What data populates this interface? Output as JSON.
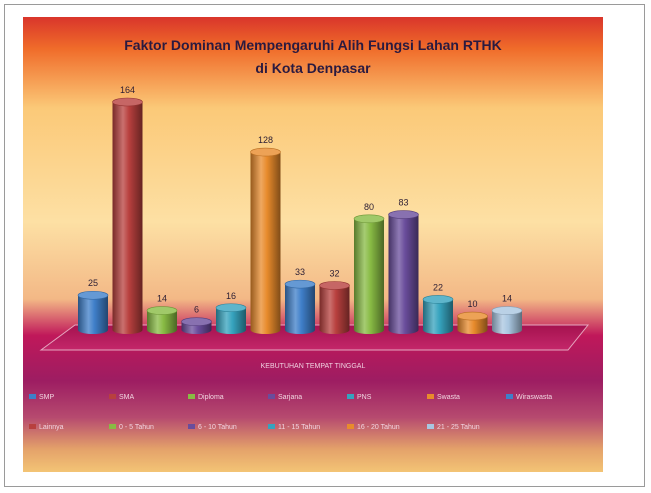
{
  "chart_data": {
    "type": "bar",
    "title_line1": "Faktor Dominan Mempengaruhi Alih Fungsi Lahan RTHK",
    "title_line2": "di Kota Denpasar",
    "xlabel": "KEBUTUHAN TEMPAT TINGGAL",
    "ylim": [
      0,
      164
    ],
    "categories": [
      "SMP",
      "SMA",
      "Diploma",
      "Sarjana",
      "PNS",
      "Swasta",
      "Wiraswasta",
      "Lainnya",
      "0 - 5 Tahun",
      "6 - 10 Tahun",
      "11 - 15 Tahun",
      "16 - 20 Tahun",
      "21 - 25 Tahun"
    ],
    "values": [
      25,
      164,
      14,
      6,
      16,
      128,
      33,
      32,
      80,
      83,
      22,
      10,
      14
    ],
    "colors": [
      "#3f7fc9",
      "#b8403e",
      "#88bb44",
      "#6a4d9c",
      "#36a3be",
      "#e88b2c",
      "#3f7fc9",
      "#b8403e",
      "#88bb44",
      "#6a4d9c",
      "#36a3be",
      "#e88b2c",
      "#a9c6e0"
    ],
    "legend_position": "bottom",
    "grid": false
  }
}
